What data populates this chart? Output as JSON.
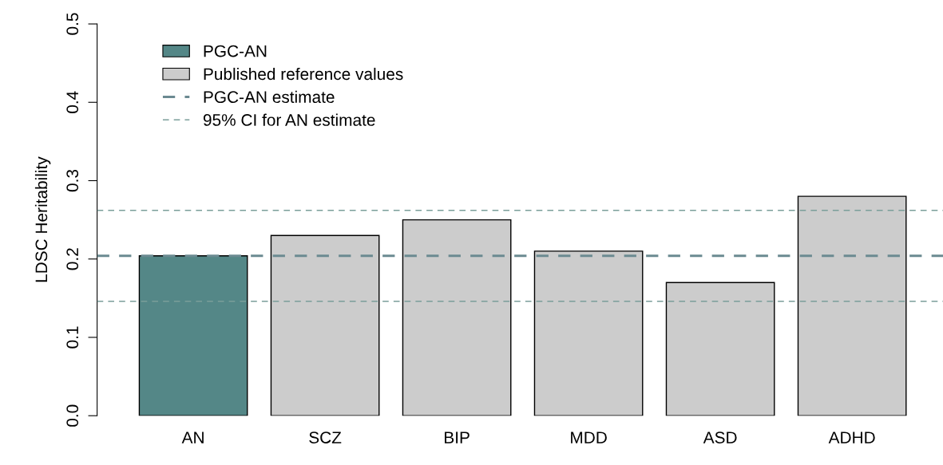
{
  "chart_data": {
    "type": "bar",
    "ylabel": "LDSC Heritability",
    "categories": [
      "AN",
      "SCZ",
      "BIP",
      "MDD",
      "ASD",
      "ADHD"
    ],
    "series": [
      {
        "name": "PGC-AN",
        "color": "#548787",
        "values": [
          0.204,
          null,
          null,
          null,
          null,
          null
        ]
      },
      {
        "name": "Published reference values",
        "color": "#cccccc",
        "values": [
          null,
          0.23,
          0.25,
          0.21,
          0.17,
          0.28
        ]
      }
    ],
    "ref_lines": [
      {
        "axis": "y",
        "value": 0.204,
        "label": "PGC-AN estimate",
        "color": "#6b8a91",
        "line_style": "dashed"
      },
      {
        "axis": "y",
        "value": 0.262,
        "label": "95% CI for AN estimate",
        "color": "#7a9e9a",
        "line_style": "dashed"
      },
      {
        "axis": "y",
        "value": 0.146,
        "color": "#7a9e9a",
        "line_style": "dashed"
      }
    ],
    "ylim": [
      0,
      0.5
    ],
    "yticks": [
      {
        "value": 0,
        "label": "0.0"
      },
      0.1,
      0.2,
      0.3,
      0.4,
      0.5
    ],
    "grid": false,
    "legend": "top left"
  }
}
